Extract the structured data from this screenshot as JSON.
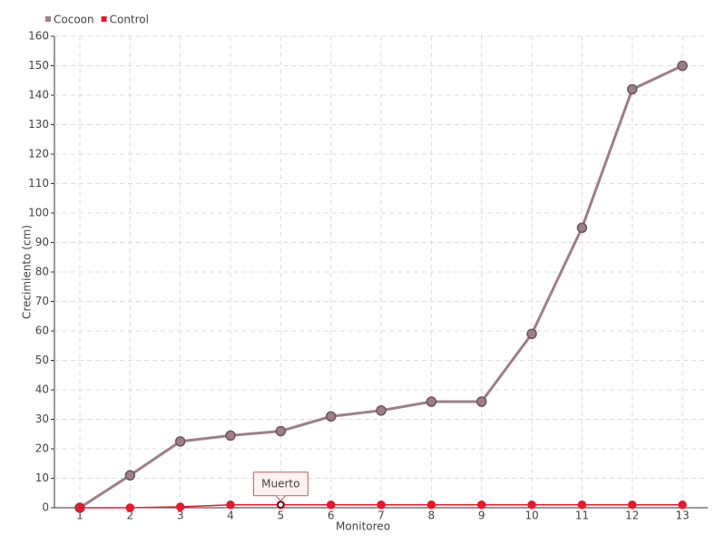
{
  "chart_data": {
    "type": "line",
    "x_label": "Monitoreo",
    "y_label": "Crecimiento (cm)",
    "categories": [
      "1",
      "2",
      "3",
      "4",
      "5",
      "6",
      "7",
      "8",
      "9",
      "10",
      "11",
      "12",
      "13"
    ],
    "series": [
      {
        "name": "Cocoon",
        "color": "#9e7f87",
        "values": [
          0,
          11,
          22.5,
          24.5,
          26,
          31,
          33,
          36,
          36,
          59,
          95,
          142,
          150
        ]
      },
      {
        "name": "Control",
        "color": "#e8192c",
        "values": [
          0,
          0,
          0.3,
          1,
          1,
          1,
          1,
          1,
          1,
          1,
          1,
          1,
          1
        ]
      }
    ],
    "annotations": [
      {
        "label": "Muerto",
        "series": 1,
        "category": "5"
      }
    ],
    "ylim": [
      0,
      160
    ],
    "yticks": [
      0,
      10,
      20,
      30,
      40,
      50,
      60,
      70,
      80,
      90,
      100,
      110,
      120,
      130,
      140,
      150,
      160
    ],
    "grid": true,
    "legend": "top-left"
  }
}
